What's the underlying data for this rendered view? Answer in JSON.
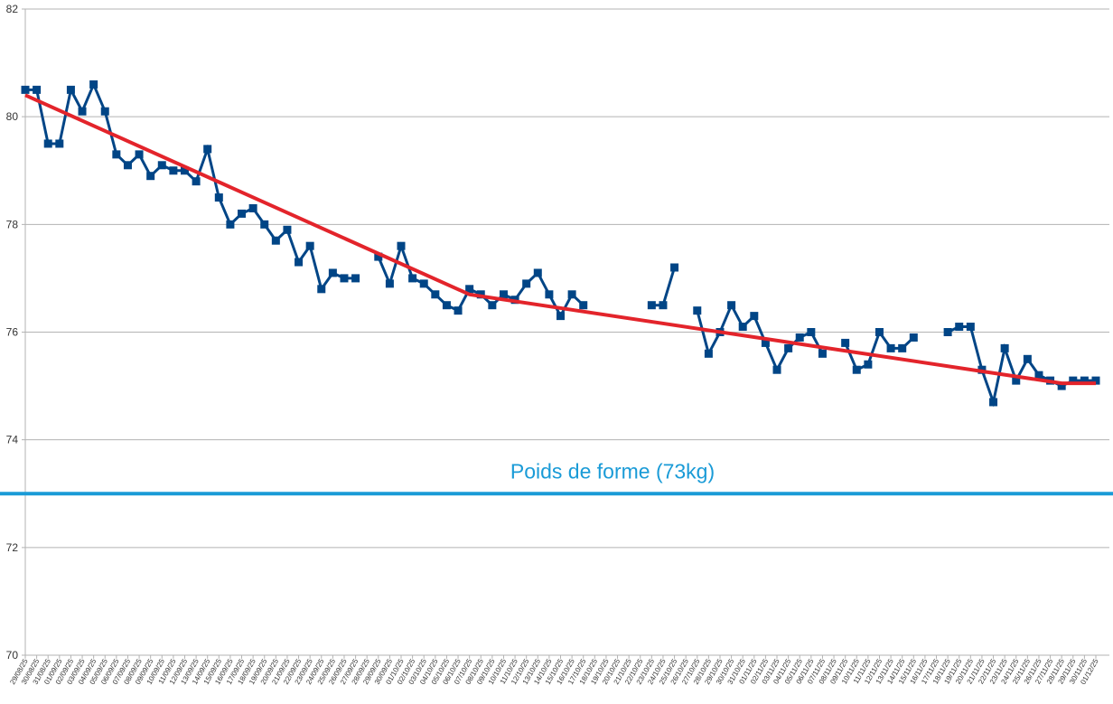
{
  "chart_data": {
    "type": "line",
    "categories": [
      "29/08/25",
      "30/08/25",
      "31/08/25",
      "01/09/25",
      "02/09/25",
      "03/09/25",
      "04/09/25",
      "05/09/25",
      "06/09/25",
      "07/09/25",
      "08/09/25",
      "09/09/25",
      "10/09/25",
      "11/09/25",
      "12/09/25",
      "13/09/25",
      "14/09/25",
      "15/09/25",
      "16/09/25",
      "17/09/25",
      "18/09/25",
      "19/09/25",
      "20/09/25",
      "21/09/25",
      "22/09/25",
      "23/09/25",
      "24/09/25",
      "25/09/25",
      "26/09/25",
      "27/09/25",
      "28/09/25",
      "29/09/25",
      "30/09/25",
      "01/10/25",
      "02/10/25",
      "03/10/25",
      "04/10/25",
      "05/10/25",
      "06/10/25",
      "07/10/25",
      "08/10/25",
      "09/10/25",
      "10/10/25",
      "11/10/25",
      "12/10/25",
      "13/10/25",
      "14/10/25",
      "15/10/25",
      "16/10/25",
      "17/10/25",
      "18/10/25",
      "19/10/25",
      "20/10/25",
      "21/10/25",
      "22/10/25",
      "23/10/25",
      "24/10/25",
      "25/10/25",
      "26/10/25",
      "27/10/25",
      "28/10/25",
      "29/10/25",
      "30/10/25",
      "31/10/25",
      "01/11/25",
      "02/11/25",
      "03/11/25",
      "04/11/25",
      "05/11/25",
      "06/11/25",
      "07/11/25",
      "08/11/25",
      "09/11/25",
      "10/11/25",
      "11/11/25",
      "12/11/25",
      "13/11/25",
      "14/11/25",
      "15/11/25",
      "16/11/25",
      "17/11/25",
      "18/11/25",
      "19/11/25",
      "20/11/25",
      "21/11/25",
      "22/11/25",
      "23/11/25",
      "24/11/25",
      "25/11/25",
      "26/11/25",
      "27/11/25",
      "28/11/25",
      "29/11/25",
      "30/11/25",
      "01/12/25"
    ],
    "series": [
      {
        "color": "#004586",
        "values": [
          80.5,
          80.5,
          79.5,
          79.5,
          80.5,
          80.1,
          80.6,
          80.1,
          79.3,
          79.1,
          79.3,
          78.9,
          79.1,
          79.0,
          79.0,
          78.8,
          79.4,
          78.5,
          78.0,
          78.2,
          78.3,
          78.0,
          77.7,
          77.9,
          77.3,
          77.6,
          76.8,
          77.1,
          77.0,
          77.0,
          null,
          77.4,
          76.9,
          77.6,
          77.0,
          76.9,
          76.7,
          76.5,
          76.4,
          76.8,
          76.7,
          76.5,
          76.7,
          76.6,
          76.9,
          77.1,
          76.7,
          76.3,
          76.7,
          76.5,
          null,
          null,
          null,
          null,
          null,
          76.5,
          76.5,
          77.2,
          null,
          76.4,
          75.6,
          76.0,
          76.5,
          76.1,
          76.3,
          75.8,
          75.3,
          75.7,
          75.9,
          76.0,
          75.6,
          null,
          75.8,
          75.3,
          75.4,
          76.0,
          75.7,
          75.7,
          75.9,
          null,
          null,
          76.0,
          76.1,
          76.1,
          75.3,
          74.7,
          75.7,
          75.1,
          75.5,
          75.2,
          75.1,
          75.0,
          75.1,
          75.1,
          75.1
        ]
      }
    ],
    "trend": {
      "color": "#e3242b",
      "categories": [
        "29/08/25",
        "07/10/25",
        "28/11/25",
        "01/12/25"
      ],
      "values": [
        80.4,
        76.7,
        75.05,
        75.05
      ]
    },
    "reference_line": {
      "value": 73,
      "label": "Poids de forme (73kg)",
      "color": "#1a9bd7"
    },
    "ylim": [
      70,
      82
    ],
    "yticks": [
      70,
      72,
      74,
      76,
      78,
      80,
      82
    ],
    "grid": true
  }
}
